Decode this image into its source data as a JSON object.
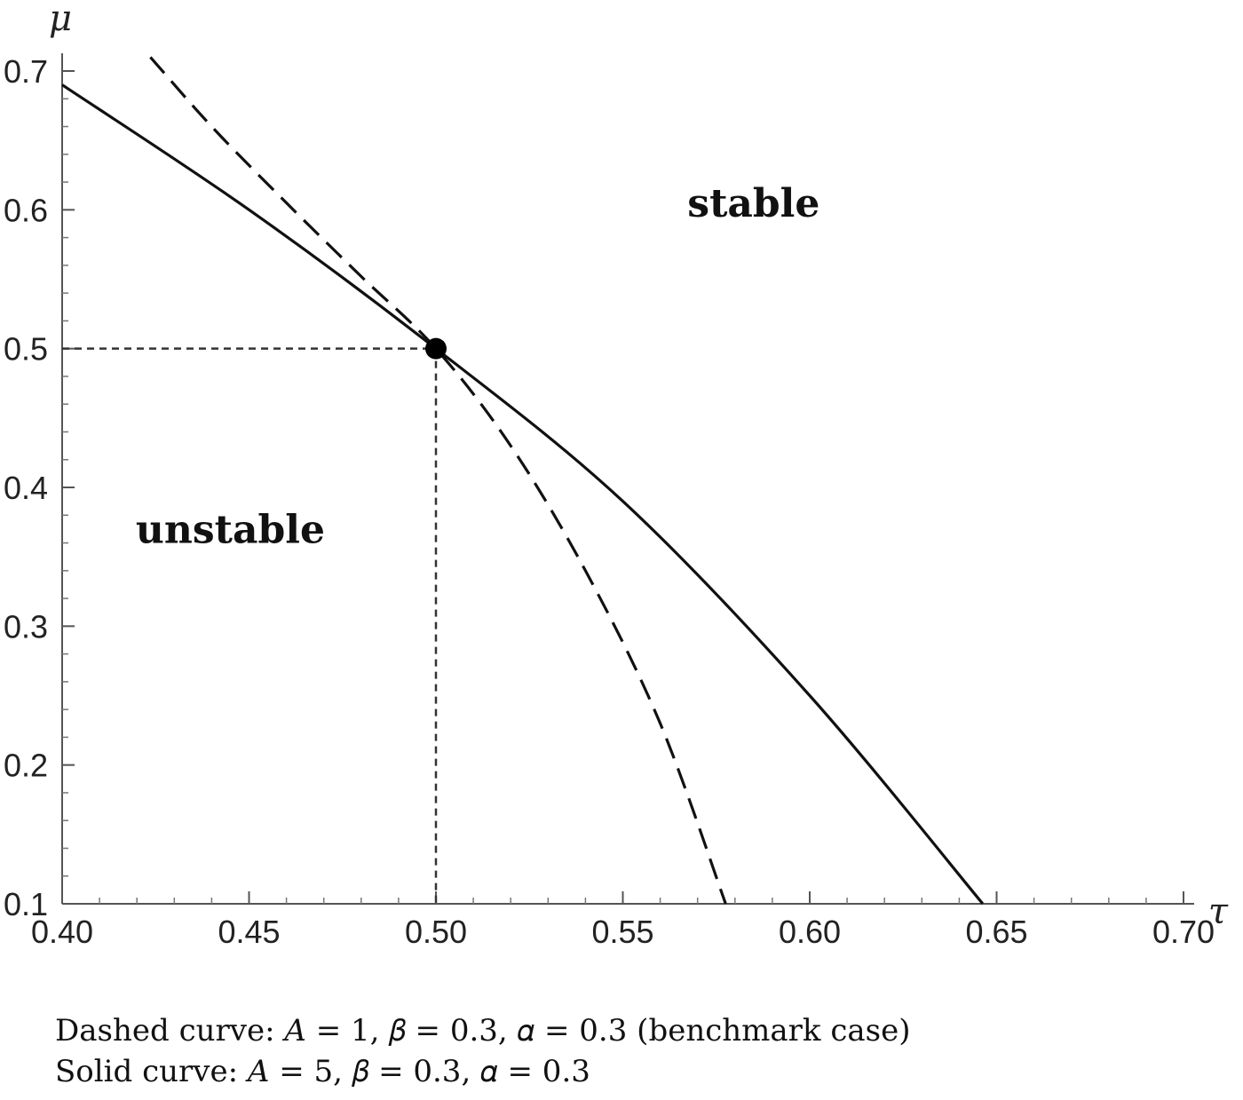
{
  "chart_data": {
    "type": "line",
    "xlabel": "τ",
    "ylabel": "μ",
    "xlim": [
      0.4,
      0.71
    ],
    "ylim": [
      0.1,
      0.71
    ],
    "x_ticks": [
      "0.40",
      "0.45",
      "0.50",
      "0.55",
      "0.60",
      "0.65",
      "0.70"
    ],
    "y_ticks": [
      "0.1",
      "0.2",
      "0.3",
      "0.4",
      "0.5",
      "0.6",
      "0.7"
    ],
    "series": [
      {
        "style": "dashed",
        "x": [
          0.4236,
          0.44,
          0.46,
          0.48,
          0.5,
          0.52,
          0.54,
          0.56,
          0.5775
        ],
        "y": [
          0.71,
          0.66,
          0.605,
          0.552,
          0.5,
          0.43,
          0.34,
          0.23,
          0.1
        ]
      },
      {
        "style": "solid",
        "x": [
          0.4,
          0.45,
          0.5,
          0.55,
          0.6,
          0.6463
        ],
        "y": [
          0.69,
          0.6,
          0.5,
          0.39,
          0.25,
          0.1
        ]
      }
    ],
    "marker": {
      "x": 0.5,
      "y": 0.5
    },
    "reference_lines": {
      "x": 0.5,
      "y": 0.5
    },
    "annotations": [
      {
        "text": "stable",
        "x": 0.585,
        "y": 0.595
      },
      {
        "text": "unstable",
        "x": 0.445,
        "y": 0.36
      }
    ],
    "grid": false
  },
  "caption": {
    "line1": "Dashed curve: 𝐴 = 1,  𝛽 = 0.3,  𝛼 = 0.3 (benchmark case)",
    "line2": "Solid curve: 𝐴 = 5,  𝛽 = 0.3,  𝛼 = 0.3"
  }
}
